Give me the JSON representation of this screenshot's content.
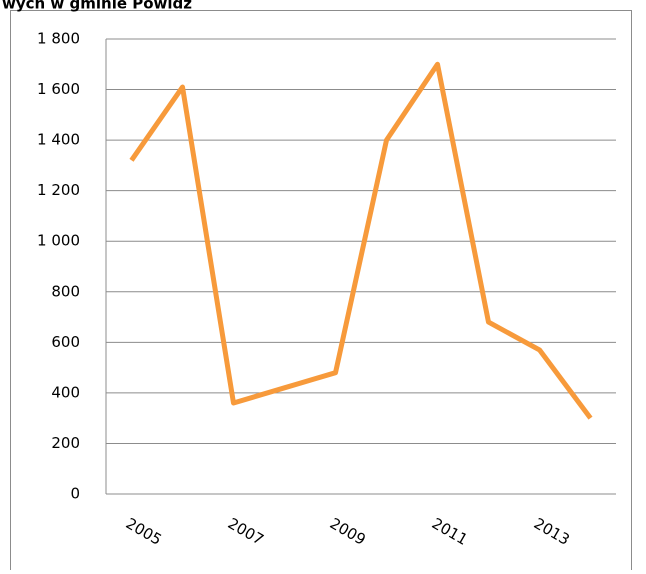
{
  "chart_data": {
    "type": "line",
    "title": "wych w gminie Powidz",
    "categories": [
      "2005",
      null,
      "2007",
      null,
      "2009",
      null,
      "2011",
      null,
      "2013",
      null
    ],
    "series": [
      {
        "name": null,
        "color": "#f79a3b",
        "values": [
          1320,
          1610,
          360,
          420,
          480,
          1400,
          1700,
          680,
          570,
          300
        ]
      }
    ],
    "ylim": [
      0,
      1800
    ],
    "yticks": [
      0,
      200,
      400,
      600,
      800,
      {
        "value": 1000,
        "label": "1 000"
      },
      {
        "value": 1200,
        "label": "1 200"
      },
      {
        "value": 1400,
        "label": "1 400"
      },
      {
        "value": 1600,
        "label": "1 600"
      },
      {
        "value": 1800,
        "label": "1 800"
      }
    ],
    "grid": true
  }
}
